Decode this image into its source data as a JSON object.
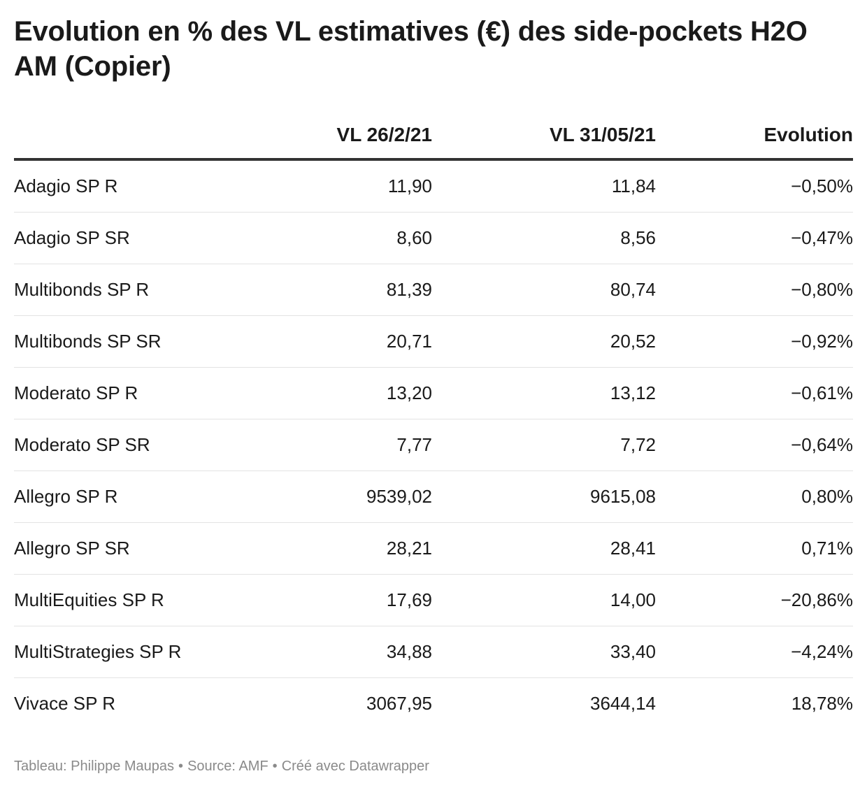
{
  "chart_data": {
    "type": "table",
    "title": "Evolution en % des VL estimatives (€) des side-pockets H2O AM  (Copier)",
    "columns": [
      "",
      "VL 26/2/21",
      "VL 31/05/21",
      "Evolution"
    ],
    "rows": [
      {
        "name": "Adagio SP R",
        "vl_feb": "11,90",
        "vl_may": "11,84",
        "evolution": "−0,50%"
      },
      {
        "name": "Adagio SP SR",
        "vl_feb": "8,60",
        "vl_may": "8,56",
        "evolution": "−0,47%"
      },
      {
        "name": "Multibonds SP R",
        "vl_feb": "81,39",
        "vl_may": "80,74",
        "evolution": "−0,80%"
      },
      {
        "name": "Multibonds SP SR",
        "vl_feb": "20,71",
        "vl_may": "20,52",
        "evolution": "−0,92%"
      },
      {
        "name": "Moderato SP R",
        "vl_feb": "13,20",
        "vl_may": "13,12",
        "evolution": "−0,61%"
      },
      {
        "name": "Moderato SP SR",
        "vl_feb": "7,77",
        "vl_may": "7,72",
        "evolution": "−0,64%"
      },
      {
        "name": "Allegro SP R",
        "vl_feb": "9539,02",
        "vl_may": "9615,08",
        "evolution": "0,80%"
      },
      {
        "name": "Allegro SP SR",
        "vl_feb": "28,21",
        "vl_may": "28,41",
        "evolution": "0,71%"
      },
      {
        "name": "MultiEquities SP R",
        "vl_feb": "17,69",
        "vl_may": "14,00",
        "evolution": "−20,86%"
      },
      {
        "name": "MultiStrategies SP R",
        "vl_feb": "34,88",
        "vl_may": "33,40",
        "evolution": "−4,24%"
      },
      {
        "name": "Vivace SP R",
        "vl_feb": "3067,95",
        "vl_may": "3644,14",
        "evolution": "18,78%"
      }
    ]
  },
  "footer": {
    "credit": "Tableau: Philippe Maupas",
    "source": "Source: AMF",
    "tool": "Créé avec Datawrapper",
    "separator": "•"
  },
  "colors": {
    "text": "#1a1a1a",
    "header_rule": "#333333",
    "row_rule": "#e3e3e3",
    "footer_text": "#8a8a8a"
  }
}
